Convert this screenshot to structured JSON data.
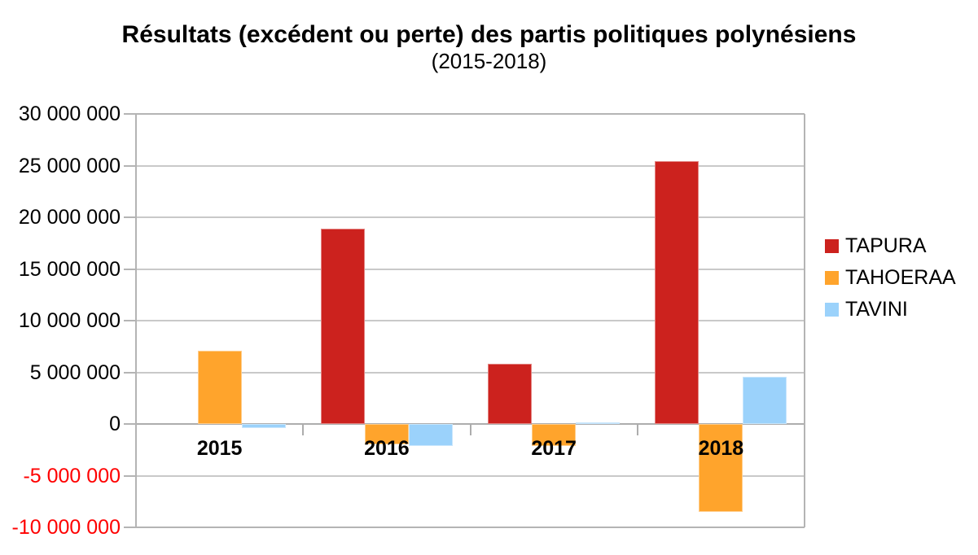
{
  "title": "Résultats (excédent ou perte) des partis politiques polynésiens",
  "subtitle": "(2015-2018)",
  "chart_data": {
    "type": "bar",
    "title": "Résultats (excédent ou perte) des partis politiques polynésiens",
    "subtitle": "(2015-2018)",
    "categories": [
      "2015",
      "2016",
      "2017",
      "2018"
    ],
    "series": [
      {
        "name": "TAPURA",
        "color": "#CC221E",
        "values": [
          0,
          18900000,
          5800000,
          25400000
        ]
      },
      {
        "name": "TAHOERAA",
        "color": "#FFA42C",
        "values": [
          7100000,
          -2000000,
          -2100000,
          -8500000
        ]
      },
      {
        "name": "TAVINI",
        "color": "#9BD2FB",
        "values": [
          -400000,
          -2100000,
          150000,
          4600000
        ]
      }
    ],
    "ylim": [
      -10000000,
      30000000
    ],
    "y_tick_step": 5000000,
    "y_ticks": [
      {
        "value": 30000000,
        "label": "30 000 000"
      },
      {
        "value": 25000000,
        "label": "25 000 000"
      },
      {
        "value": 20000000,
        "label": "20 000 000"
      },
      {
        "value": 15000000,
        "label": "15 000 000"
      },
      {
        "value": 10000000,
        "label": "10 000 000"
      },
      {
        "value": 5000000,
        "label": "5 000 000"
      },
      {
        "value": 0,
        "label": "0"
      },
      {
        "value": -5000000,
        "label": "-5 000 000"
      },
      {
        "value": -10000000,
        "label": "-10 000 000"
      }
    ],
    "negative_label_color": "#FF0000",
    "grid": true,
    "legend_position": "right",
    "xlabel": "",
    "ylabel": ""
  }
}
